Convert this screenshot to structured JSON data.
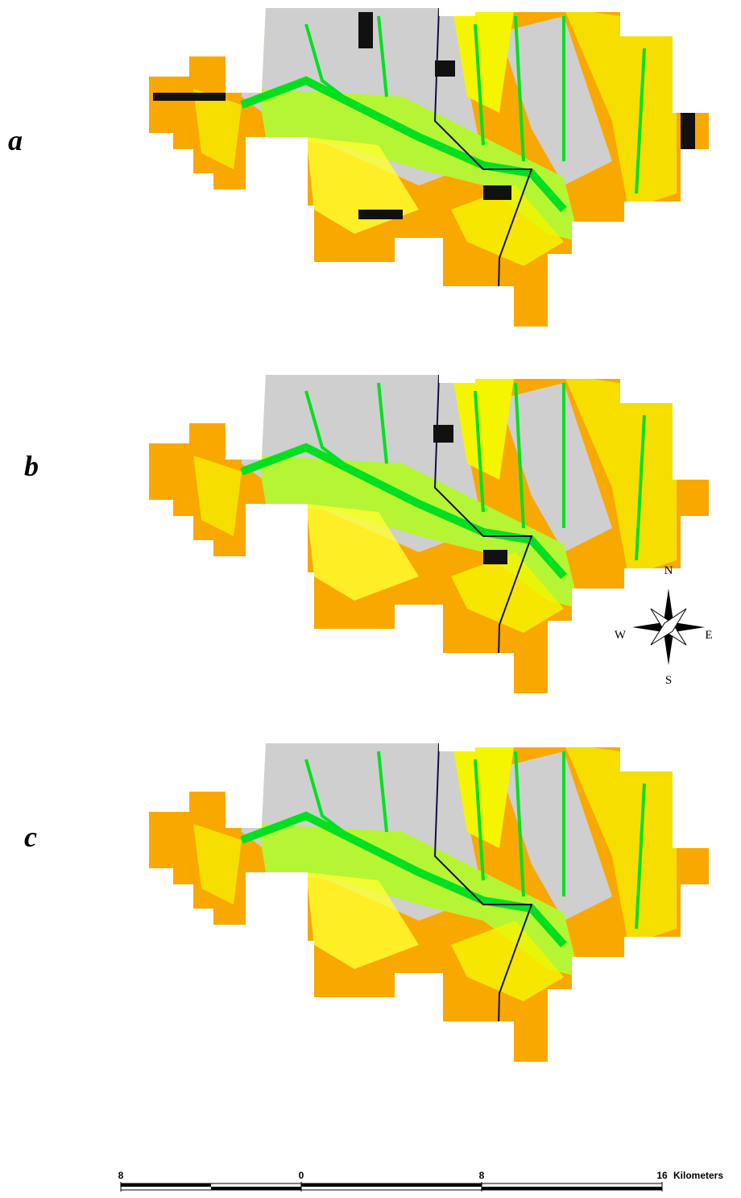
{
  "panels": [
    {
      "label": "a"
    },
    {
      "label": "b"
    },
    {
      "label": "c"
    }
  ],
  "compass": {
    "north": "N",
    "south": "S",
    "east": "E",
    "west": "W"
  },
  "scale_bar": {
    "ticks": [
      {
        "value": -8,
        "label": "8"
      },
      {
        "value": 0,
        "label": "0"
      },
      {
        "value": 8,
        "label": "8"
      },
      {
        "value": 16,
        "label": "16"
      }
    ],
    "unit": "Kilometers"
  }
}
